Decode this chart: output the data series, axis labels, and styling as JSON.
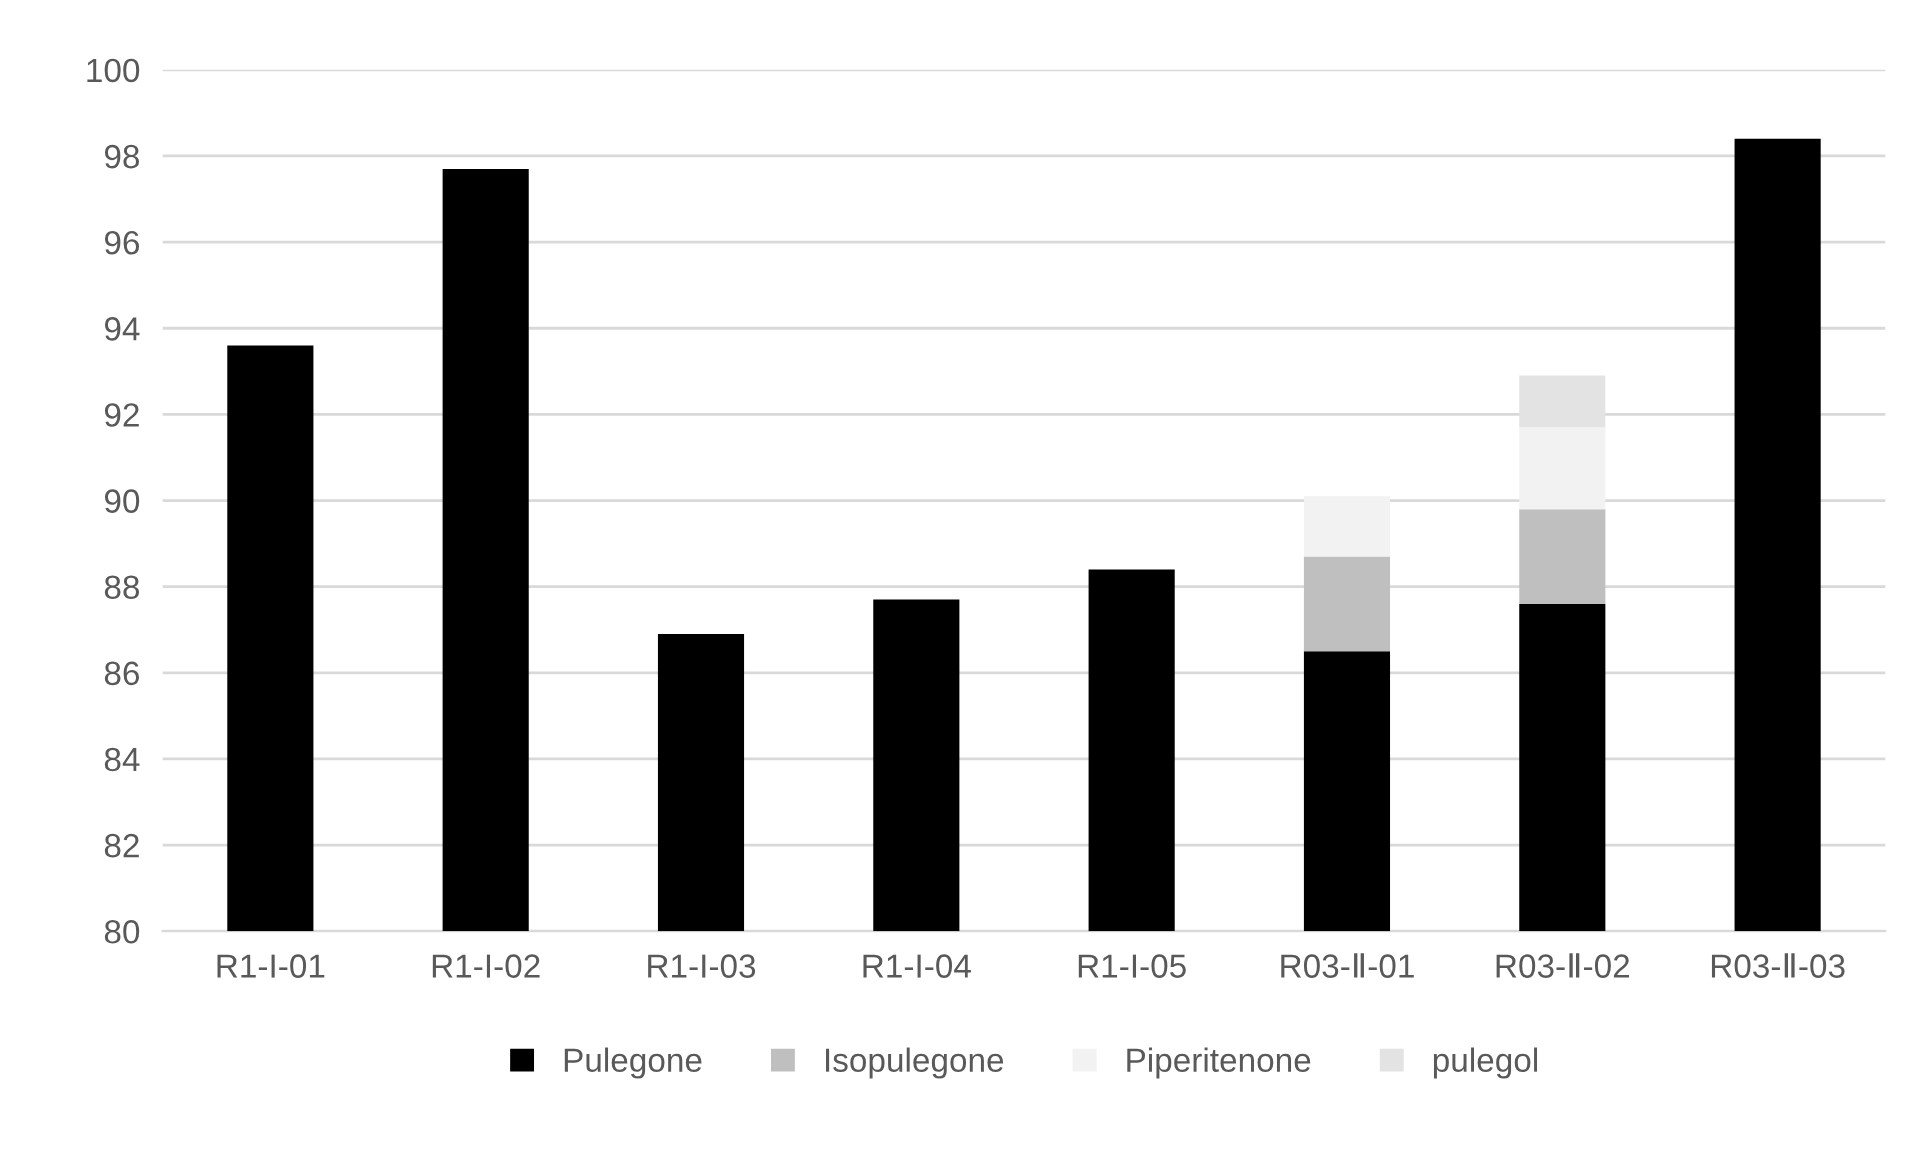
{
  "chart_data": {
    "type": "bar",
    "stacked": true,
    "categories": [
      "R1-I-01",
      "R1-I-02",
      "R1-I-03",
      "R1-I-04",
      "R1-I-05",
      "R03-Ⅱ-01",
      "R03-Ⅱ-02",
      "R03-Ⅱ-03"
    ],
    "series": [
      {
        "name": "Pulegone",
        "color": "#000000",
        "values": [
          93.6,
          97.7,
          86.9,
          87.7,
          88.4,
          86.5,
          87.6,
          98.4
        ]
      },
      {
        "name": "Isopulegone",
        "color": "#bfbfbf",
        "base": [
          null,
          null,
          null,
          null,
          null,
          86.5,
          87.6,
          null
        ],
        "values": [
          null,
          null,
          null,
          null,
          null,
          2.2,
          2.2,
          null
        ]
      },
      {
        "name": "Piperitenone",
        "color": "#f2f2f2",
        "base": [
          null,
          null,
          null,
          null,
          null,
          88.7,
          89.8,
          null
        ],
        "values": [
          null,
          null,
          null,
          null,
          null,
          1.4,
          1.9,
          null
        ]
      },
      {
        "name": "pulegol",
        "color": "#e3e3e3",
        "base": [
          null,
          null,
          null,
          null,
          null,
          null,
          91.7,
          null
        ],
        "values": [
          null,
          null,
          null,
          null,
          null,
          null,
          1.2,
          null
        ]
      }
    ],
    "ylim": [
      80,
      100
    ],
    "yticks": [
      80,
      82,
      84,
      86,
      88,
      90,
      92,
      94,
      96,
      98,
      100
    ],
    "grid": "y",
    "legend": "bottom"
  }
}
